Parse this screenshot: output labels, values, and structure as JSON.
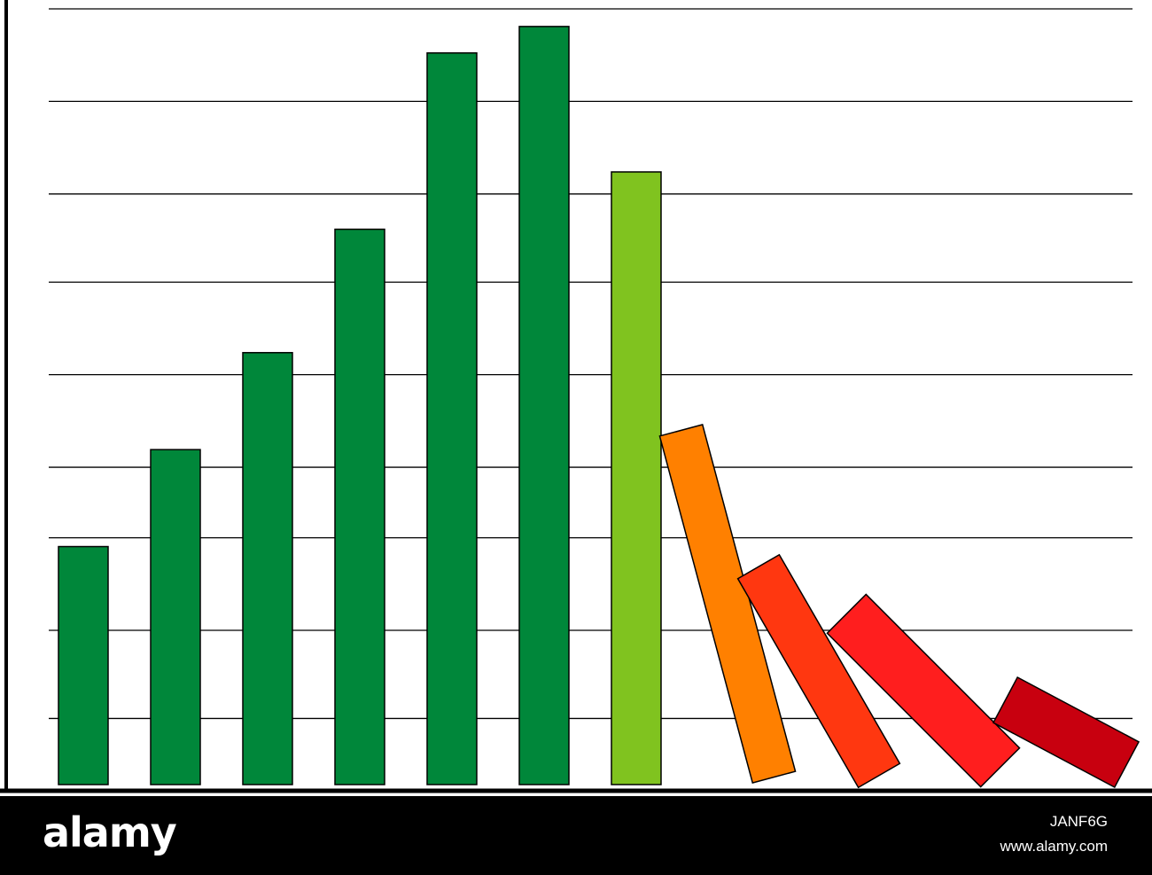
{
  "chart_data": {
    "type": "bar",
    "title": "",
    "xlabel": "",
    "ylabel": "",
    "ylim": [
      0,
      8.8
    ],
    "grid": true,
    "gridlines_y": [
      0.75,
      1.75,
      2.8,
      3.6,
      4.65,
      5.7,
      6.7,
      7.75,
      8.8
    ],
    "standing_bars": [
      {
        "value": 2.7,
        "color": "#00873a"
      },
      {
        "value": 3.8,
        "color": "#00873a"
      },
      {
        "value": 4.9,
        "color": "#00873a"
      },
      {
        "value": 6.3,
        "color": "#00873a"
      },
      {
        "value": 8.3,
        "color": "#00873a"
      },
      {
        "value": 8.6,
        "color": "#00873a"
      },
      {
        "value": 6.95,
        "color": "#80c31f"
      }
    ],
    "falling_bars": [
      {
        "tilt_deg": -15,
        "color": "#ff8000"
      },
      {
        "tilt_deg": -30,
        "color": "#ff3710"
      },
      {
        "tilt_deg": -45,
        "color": "#ff1e1e"
      },
      {
        "tilt_deg": -62,
        "color": "#c8000f"
      }
    ],
    "colors": {
      "axis": "#000000",
      "grid": "#000000",
      "bar_outline": "#000000"
    }
  },
  "watermark": {
    "logo": "alamy",
    "image_id": "JANF6G",
    "site": "www.alamy.com"
  }
}
